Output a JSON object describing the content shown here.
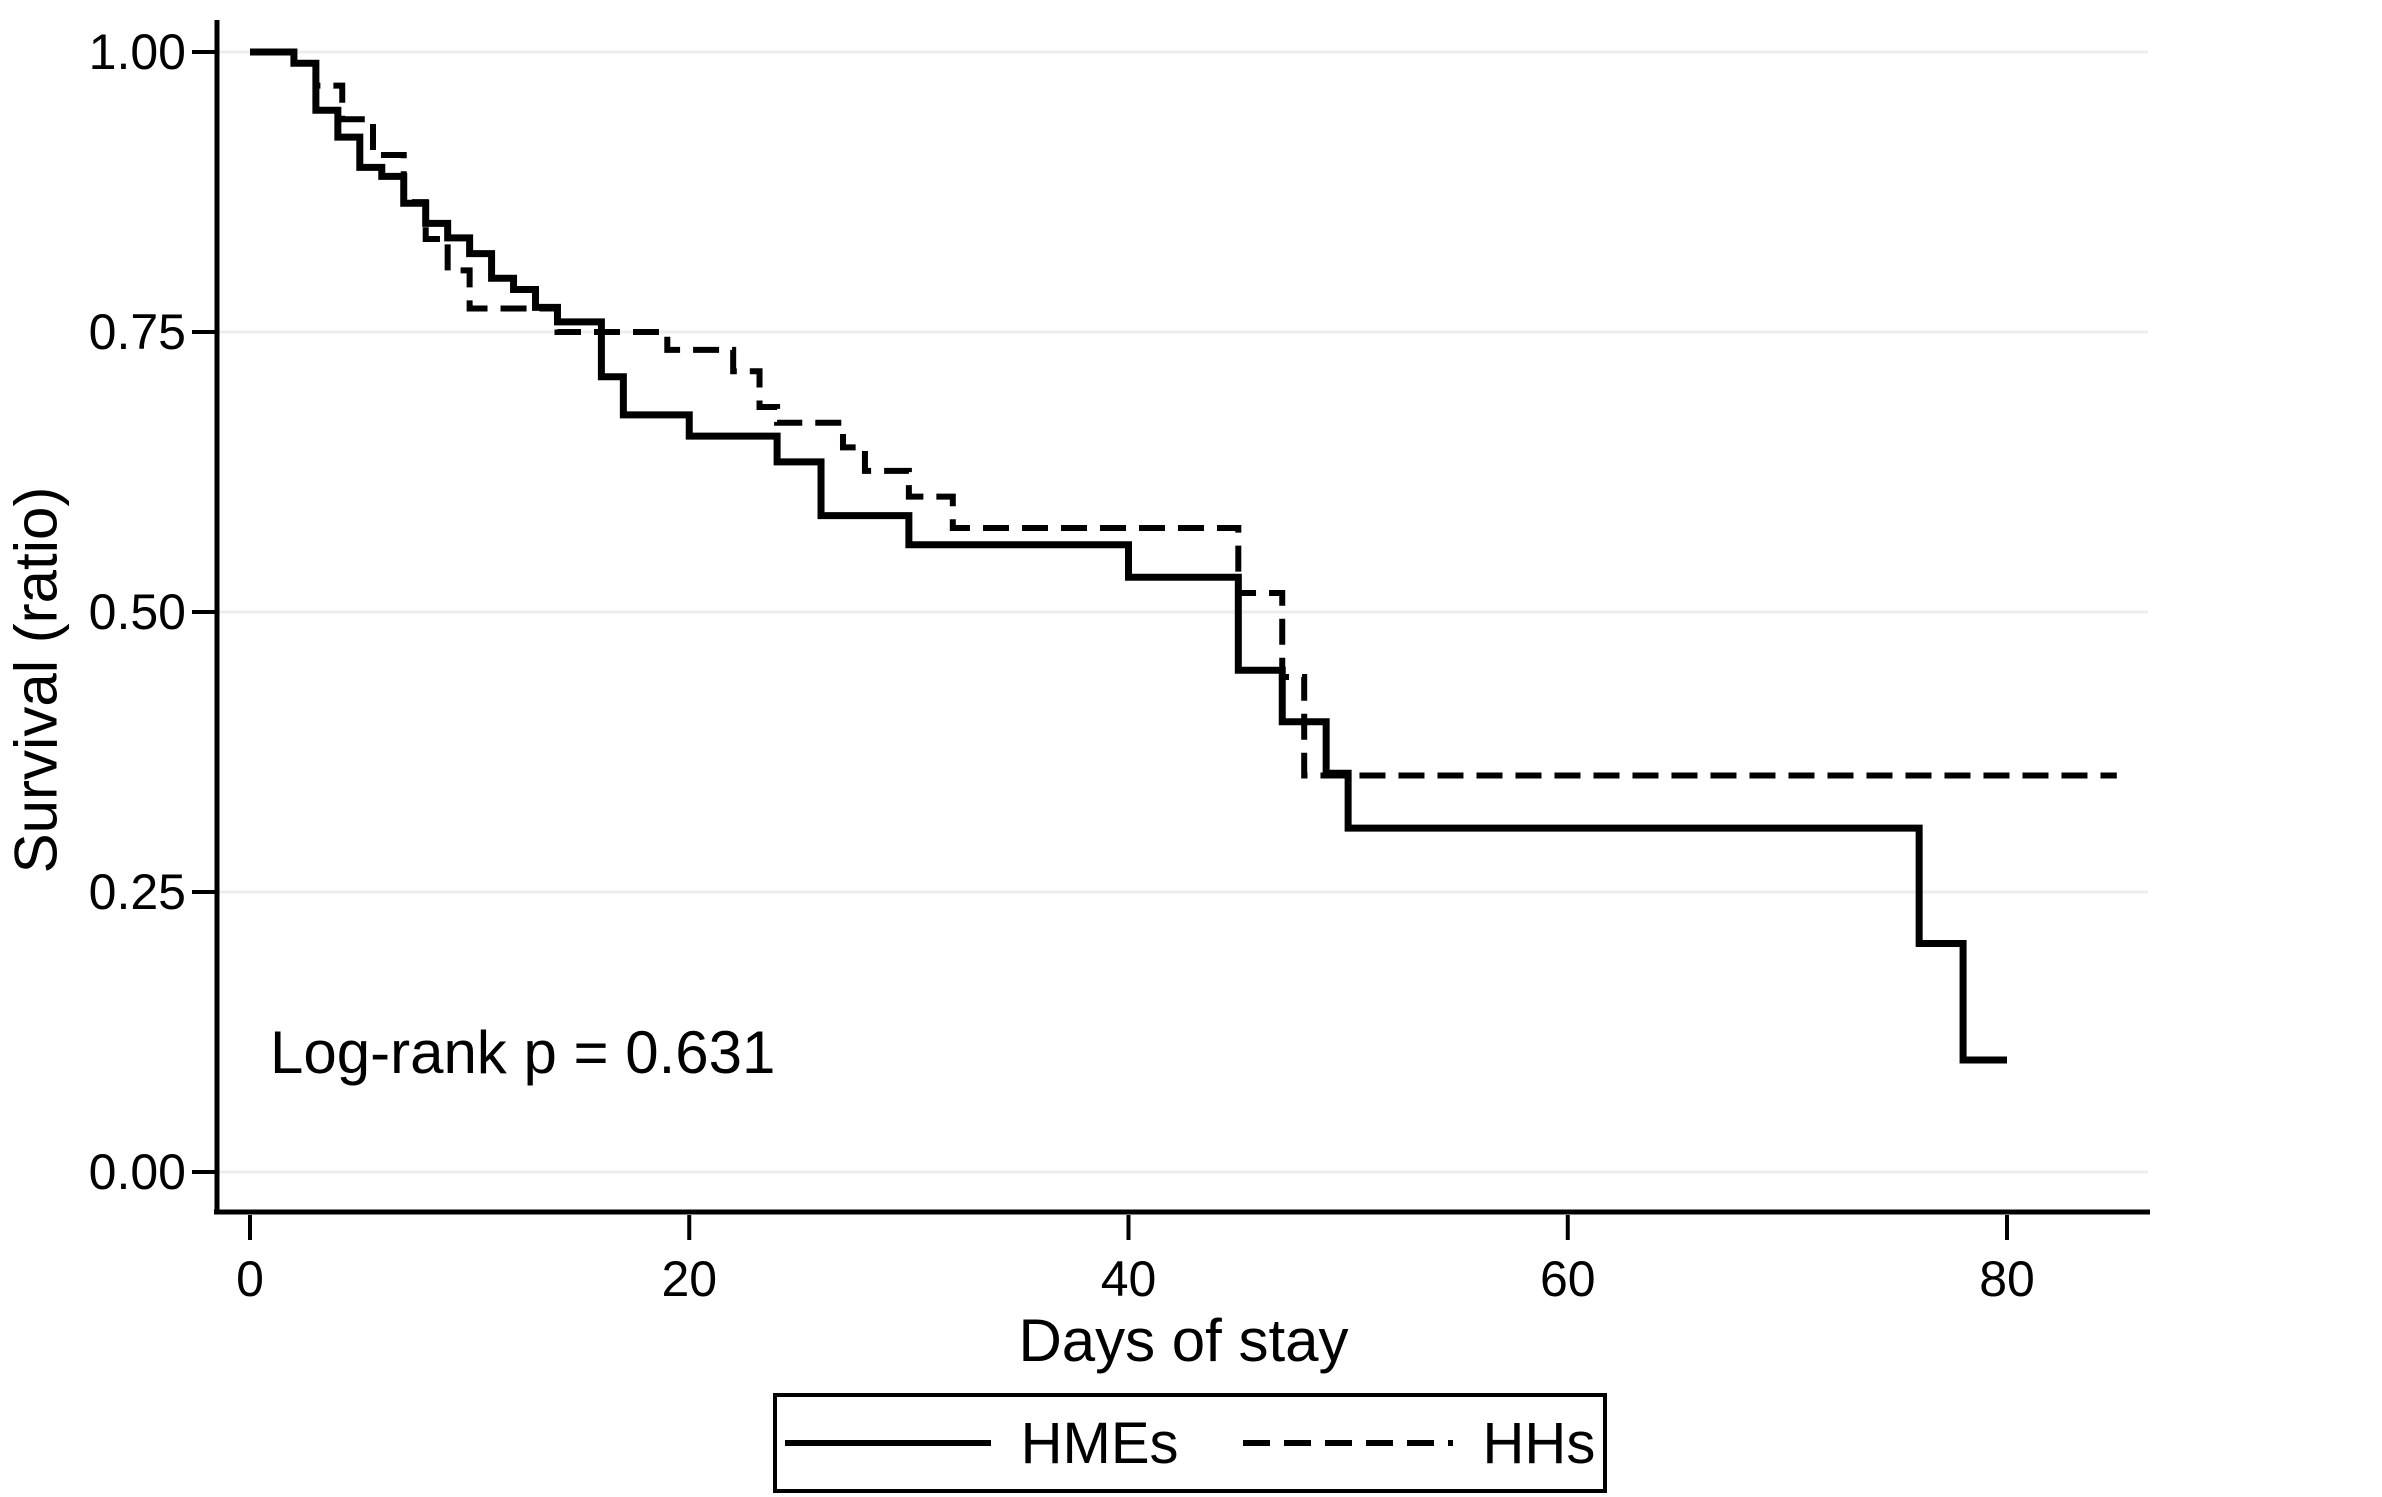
{
  "figure": {
    "background": "#ffffff",
    "line_color": "#000000",
    "gridline_color": "#ededed"
  },
  "chart_data": {
    "type": "line",
    "subtype": "kaplan-meier-step-survival",
    "title": "",
    "xlabel": "Days of stay",
    "ylabel": "Survival (ratio)",
    "annotation": "Log-rank p = 0.631",
    "grid": "horizontal-only",
    "legend_position": "bottom-center-boxed",
    "xlim": [
      0,
      85
    ],
    "ylim": [
      0,
      1
    ],
    "x_ticks": [
      0,
      20,
      40,
      60,
      80
    ],
    "x_tick_labels": [
      "0",
      "20",
      "40",
      "60",
      "80"
    ],
    "y_ticks": [
      1.0,
      0.75,
      0.5,
      0.25,
      0.0
    ],
    "y_tick_labels": [
      "1.00",
      "0.75",
      "0.50",
      "0.25",
      "0.00"
    ],
    "series": [
      {
        "name": "HMEs",
        "line_style": "solid",
        "end_day": 80,
        "steps": [
          [
            0,
            1.0
          ],
          [
            2,
            0.99
          ],
          [
            3,
            0.948
          ],
          [
            4,
            0.924
          ],
          [
            5,
            0.897
          ],
          [
            6,
            0.889
          ],
          [
            7,
            0.865
          ],
          [
            8,
            0.847
          ],
          [
            9,
            0.834
          ],
          [
            10,
            0.82
          ],
          [
            11,
            0.798
          ],
          [
            12,
            0.788
          ],
          [
            13,
            0.772
          ],
          [
            14,
            0.759
          ],
          [
            16,
            0.71
          ],
          [
            17,
            0.676
          ],
          [
            20,
            0.657
          ],
          [
            24,
            0.634
          ],
          [
            26,
            0.586
          ],
          [
            30,
            0.56
          ],
          [
            40,
            0.531
          ],
          [
            45,
            0.448
          ],
          [
            47,
            0.402
          ],
          [
            49,
            0.356
          ],
          [
            50,
            0.307
          ],
          [
            76,
            0.204
          ],
          [
            78,
            0.1
          ]
        ]
      },
      {
        "name": "HHs",
        "line_style": "dashed",
        "end_day": 85,
        "steps": [
          [
            0,
            1.0
          ],
          [
            2,
            0.99
          ],
          [
            3,
            0.97
          ],
          [
            4.2,
            0.94
          ],
          [
            5.6,
            0.908
          ],
          [
            7,
            0.866
          ],
          [
            8,
            0.833
          ],
          [
            9,
            0.805
          ],
          [
            10,
            0.771
          ],
          [
            14,
            0.75
          ],
          [
            19,
            0.734
          ],
          [
            22,
            0.715
          ],
          [
            23.2,
            0.683
          ],
          [
            24,
            0.669
          ],
          [
            27,
            0.647
          ],
          [
            28,
            0.626
          ],
          [
            30,
            0.603
          ],
          [
            32,
            0.575
          ],
          [
            45,
            0.517
          ],
          [
            47,
            0.442
          ],
          [
            48,
            0.354
          ]
        ]
      }
    ]
  }
}
